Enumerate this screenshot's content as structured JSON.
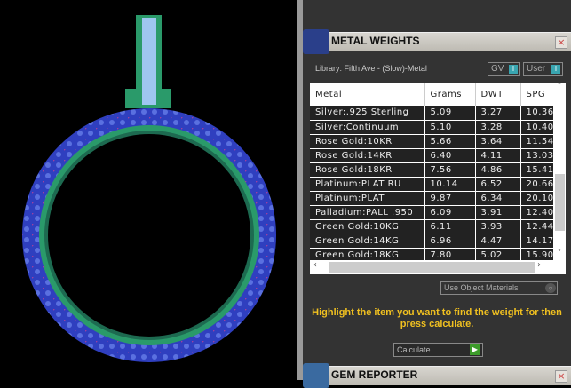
{
  "metal_weights": {
    "title": "METAL WEIGHTS",
    "close": "×",
    "library": "Library: Fifth Ave - (Slow)-Metal",
    "gv_toggle": "GV",
    "user_toggle": "User",
    "columns": [
      "Metal",
      "Grams",
      "DWT",
      "SPG"
    ],
    "rows": [
      [
        "Silver:.925 Sterling",
        "5.09",
        "3.27",
        "10.36"
      ],
      [
        "Silver:Continuum",
        "5.10",
        "3.28",
        "10.40"
      ],
      [
        "Rose Gold:10KR",
        "5.66",
        "3.64",
        "11.54"
      ],
      [
        "Rose Gold:14KR",
        "6.40",
        "4.11",
        "13.03"
      ],
      [
        "Rose Gold:18KR",
        "7.56",
        "4.86",
        "15.41"
      ],
      [
        "Platinum:PLAT RU",
        "10.14",
        "6.52",
        "20.66"
      ],
      [
        "Platinum:PLAT",
        "9.87",
        "6.34",
        "20.10"
      ],
      [
        "Palladium:PALL .950",
        "6.09",
        "3.91",
        "12.40"
      ],
      [
        "Green Gold:10KG",
        "6.11",
        "3.93",
        "12.44"
      ],
      [
        "Green Gold:14KG",
        "6.96",
        "4.47",
        "14.17"
      ],
      [
        "Green Gold:18KG",
        "7.80",
        "5.02",
        "15.90"
      ]
    ],
    "use_object_materials": "Use Object Materials",
    "hint": "Highlight the item you want to find the weight for then press calculate.",
    "calculate": "Calculate"
  },
  "gem_reporter": {
    "title": "GEM REPORTER",
    "close": "×"
  },
  "colors": {
    "accent": "#f0c020",
    "ring_blue": "#2f3fbf",
    "ring_green": "#2a9a6a",
    "toggle": "#39a5b0"
  }
}
